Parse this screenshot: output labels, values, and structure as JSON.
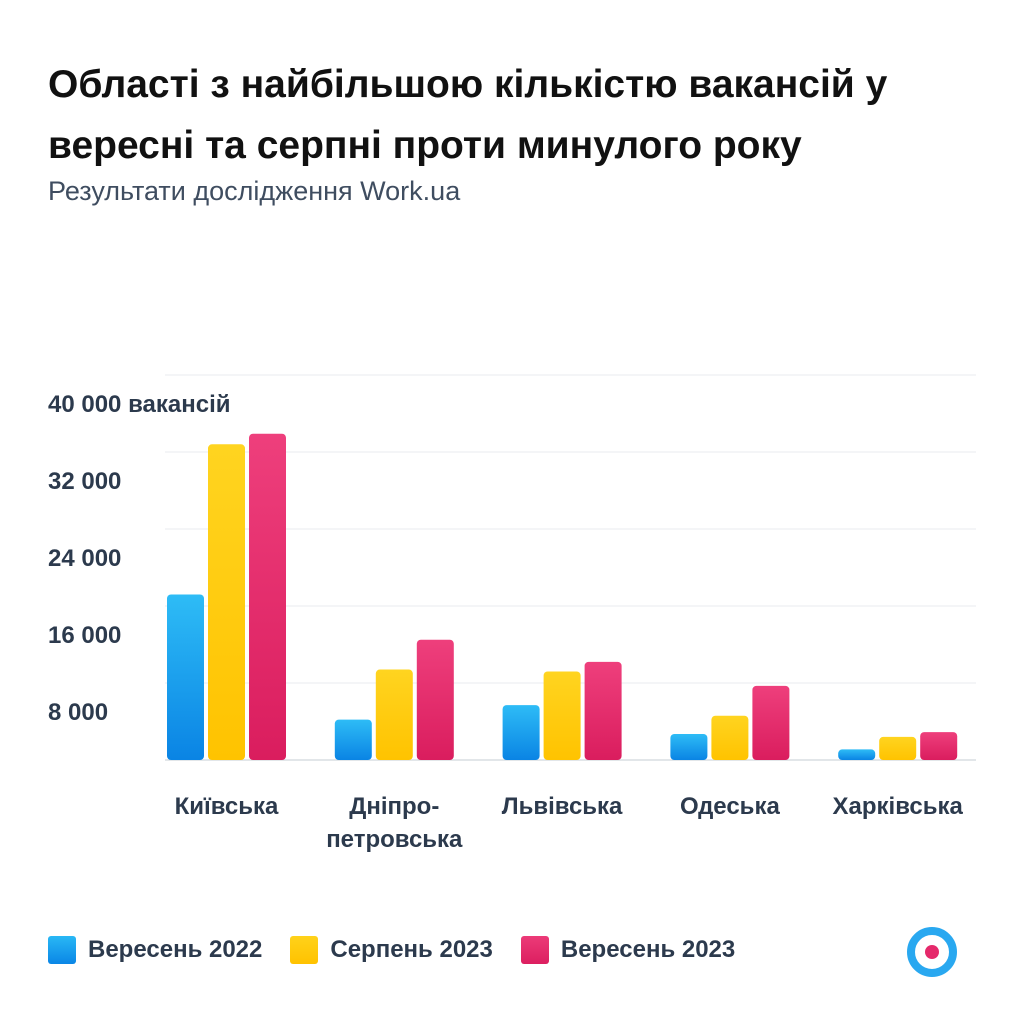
{
  "header": {
    "title": "Області з найбільшою кількістю вакансій у вересні та серпні проти минулого року",
    "subtitle": "Результати дослідження Work.ua"
  },
  "legend": {
    "items": [
      {
        "label": "Вересень 2022",
        "color": "#1a9cf0"
      },
      {
        "label": "Серпень 2023",
        "color": "#ffcb05"
      },
      {
        "label": "Вересень 2023",
        "color": "#e5296b"
      }
    ]
  },
  "logo": {
    "icon": "work-ua-logo-icon",
    "ring_color": "#29a8f0",
    "dot_color": "#e5296b"
  },
  "chart_data": {
    "type": "bar",
    "title": "Області з найбільшою кількістю вакансій у вересні та серпні проти минулого року",
    "subtitle": "Результати дослідження Work.ua",
    "categories": [
      [
        "Київська"
      ],
      [
        "Дніпро-",
        "петровська"
      ],
      [
        "Львівська"
      ],
      [
        "Одеська"
      ],
      [
        "Харківська"
      ]
    ],
    "series": [
      {
        "name": "Вересень 2022",
        "color": "#1a9cf0",
        "values": [
          17200,
          4200,
          5700,
          2700,
          1100
        ]
      },
      {
        "name": "Серпень 2023",
        "color": "#ffcb05",
        "values": [
          32800,
          9400,
          9200,
          4600,
          2400
        ]
      },
      {
        "name": "Вересень 2023",
        "color": "#e5296b",
        "values": [
          33900,
          12500,
          10200,
          7700,
          2900
        ]
      }
    ],
    "ylim": [
      0,
      40000
    ],
    "y_ticks": [
      {
        "value": 8000,
        "label": "8 000"
      },
      {
        "value": 16000,
        "label": "16 000"
      },
      {
        "value": 24000,
        "label": "24 000"
      },
      {
        "value": 32000,
        "label": "32 000"
      },
      {
        "value": 40000,
        "label": "40 000 вакансій"
      }
    ],
    "grid": true,
    "legend_position": "bottom-left"
  }
}
